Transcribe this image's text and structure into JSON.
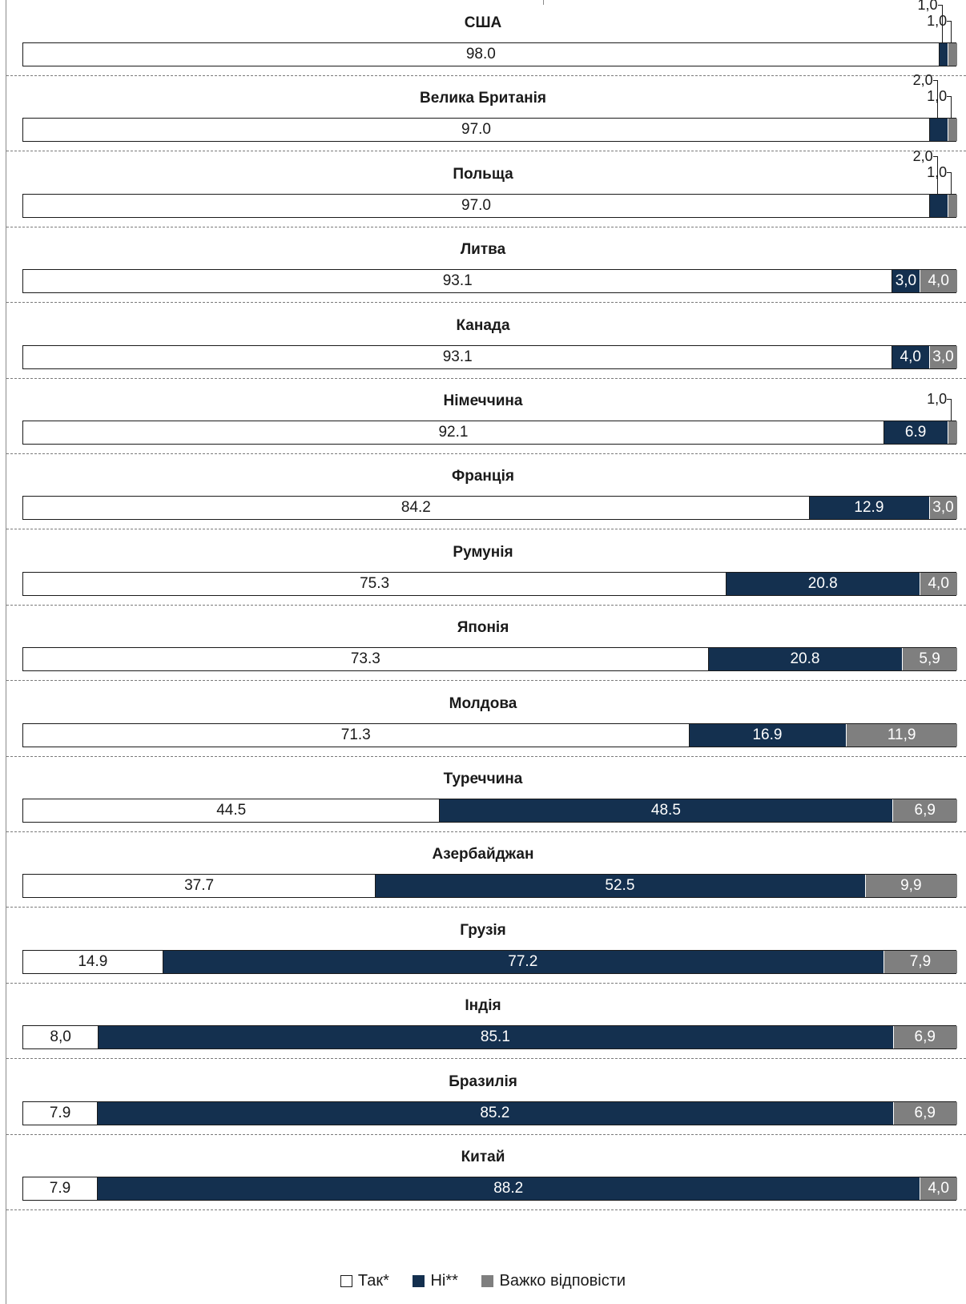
{
  "chart_data": {
    "type": "bar",
    "orientation": "horizontal",
    "stacked": true,
    "percent_stacked": true,
    "legend_position": "bottom",
    "categories": [
      "США",
      "Велика Британія",
      "Польща",
      "Литва",
      "Канада",
      "Німеччина",
      "Франція",
      "Румунія",
      "Японія",
      "Молдова",
      "Туреччина",
      "Азербайджан",
      "Грузія",
      "Індія",
      "Бразилія",
      "Китай"
    ],
    "series": [
      {
        "name": "Так*",
        "color": "#ffffff",
        "values": [
          98.0,
          97.0,
          97.0,
          93.1,
          93.1,
          92.1,
          84.2,
          75.3,
          73.3,
          71.3,
          44.5,
          37.7,
          14.9,
          8.0,
          7.9,
          7.9
        ],
        "labels": [
          "98.0",
          "97.0",
          "97.0",
          "93.1",
          "93.1",
          "92.1",
          "84.2",
          "75.3",
          "73.3",
          "71.3",
          "44.5",
          "37.7",
          "14.9",
          "8,0",
          "7.9",
          "7.9"
        ]
      },
      {
        "name": "Ні**",
        "color": "#14304f",
        "values": [
          1.0,
          2.0,
          2.0,
          3.0,
          4.0,
          6.9,
          12.9,
          20.8,
          20.8,
          16.9,
          48.5,
          52.5,
          77.2,
          85.1,
          85.2,
          88.2
        ],
        "labels": [
          "1,0",
          "2,0",
          "2,0",
          "3,0",
          "4,0",
          "6.9",
          "12.9",
          "20.8",
          "20.8",
          "16.9",
          "48.5",
          "52.5",
          "77.2",
          "85.1",
          "85.2",
          "88.2"
        ]
      },
      {
        "name": "Важко відповісти",
        "color": "#7f7f7f",
        "values": [
          1.0,
          1.0,
          1.0,
          4.0,
          3.0,
          1.0,
          3.0,
          4.0,
          5.9,
          11.9,
          6.9,
          9.9,
          7.9,
          6.9,
          6.9,
          4.0
        ],
        "labels": [
          "1,0",
          "1,0",
          "1,0",
          "4,0",
          "3,0",
          "1,0",
          "3,0",
          "4,0",
          "5,9",
          "11,9",
          "6,9",
          "9,9",
          "7,9",
          "6,9",
          "6,9",
          "4,0"
        ]
      }
    ]
  }
}
